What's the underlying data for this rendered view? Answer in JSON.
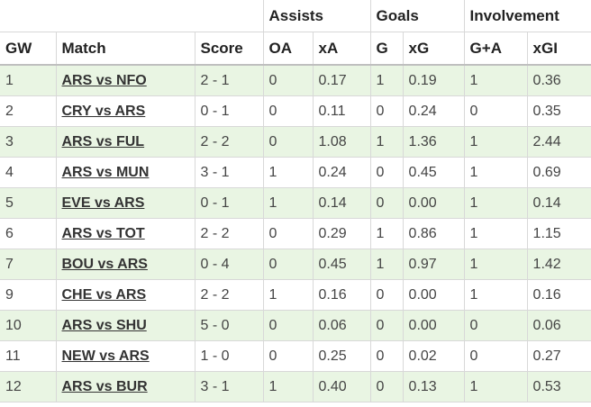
{
  "groups": {
    "assists": "Assists",
    "goals": "Goals",
    "involvement": "Involvement"
  },
  "columns": {
    "gw": "GW",
    "match": "Match",
    "score": "Score",
    "oa": "OA",
    "xa": "xA",
    "g": "G",
    "xg": "xG",
    "ga": "G+A",
    "xgi": "xGI"
  },
  "rows": [
    {
      "gw": "1",
      "match": "ARS vs NFO",
      "score": "2 - 1",
      "oa": "0",
      "xa": "0.17",
      "g": "1",
      "xg": "0.19",
      "ga": "1",
      "xgi": "0.36"
    },
    {
      "gw": "2",
      "match": "CRY vs ARS",
      "score": "0 - 1",
      "oa": "0",
      "xa": "0.11",
      "g": "0",
      "xg": "0.24",
      "ga": "0",
      "xgi": "0.35"
    },
    {
      "gw": "3",
      "match": "ARS vs FUL",
      "score": "2 - 2",
      "oa": "0",
      "xa": "1.08",
      "g": "1",
      "xg": "1.36",
      "ga": "1",
      "xgi": "2.44"
    },
    {
      "gw": "4",
      "match": "ARS vs MUN",
      "score": "3 - 1",
      "oa": "1",
      "xa": "0.24",
      "g": "0",
      "xg": "0.45",
      "ga": "1",
      "xgi": "0.69"
    },
    {
      "gw": "5",
      "match": "EVE vs ARS",
      "score": "0 - 1",
      "oa": "1",
      "xa": "0.14",
      "g": "0",
      "xg": "0.00",
      "ga": "1",
      "xgi": "0.14"
    },
    {
      "gw": "6",
      "match": "ARS vs TOT",
      "score": "2 - 2",
      "oa": "0",
      "xa": "0.29",
      "g": "1",
      "xg": "0.86",
      "ga": "1",
      "xgi": "1.15"
    },
    {
      "gw": "7",
      "match": "BOU vs ARS",
      "score": "0 - 4",
      "oa": "0",
      "xa": "0.45",
      "g": "1",
      "xg": "0.97",
      "ga": "1",
      "xgi": "1.42"
    },
    {
      "gw": "9",
      "match": "CHE vs ARS",
      "score": "2 - 2",
      "oa": "1",
      "xa": "0.16",
      "g": "0",
      "xg": "0.00",
      "ga": "1",
      "xgi": "0.16"
    },
    {
      "gw": "10",
      "match": "ARS vs SHU",
      "score": "5 - 0",
      "oa": "0",
      "xa": "0.06",
      "g": "0",
      "xg": "0.00",
      "ga": "0",
      "xgi": "0.06"
    },
    {
      "gw": "11",
      "match": "NEW vs ARS",
      "score": "1 - 0",
      "oa": "0",
      "xa": "0.25",
      "g": "0",
      "xg": "0.02",
      "ga": "0",
      "xgi": "0.27"
    },
    {
      "gw": "12",
      "match": "ARS vs BUR",
      "score": "3 - 1",
      "oa": "1",
      "xa": "0.40",
      "g": "0",
      "xg": "0.13",
      "ga": "1",
      "xgi": "0.53"
    }
  ],
  "colors": {
    "shaded_row": "#e9f5e3",
    "border": "#d8d8d8"
  }
}
